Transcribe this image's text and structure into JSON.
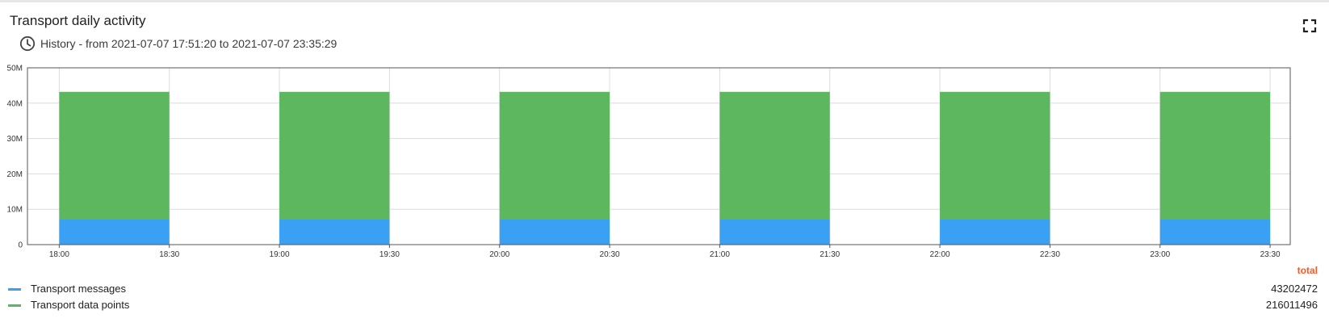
{
  "widget": {
    "title": "Transport daily activity",
    "history_label": "History - from 2021-07-07 17:51:20 to 2021-07-07 23:35:29"
  },
  "icons": {
    "history": "clock-icon",
    "fullscreen": "fullscreen-icon"
  },
  "colors": {
    "messages": "#3aa0f3",
    "data_points": "#5cb75f",
    "total_label": "#ff5722"
  },
  "chart_data": {
    "type": "bar",
    "stacked": true,
    "x_tick_labels": [
      "18:00",
      "18:30",
      "19:00",
      "19:30",
      "20:00",
      "20:30",
      "21:00",
      "21:30",
      "22:00",
      "22:30",
      "23:00",
      "23:30"
    ],
    "y_tick_labels": [
      "0",
      "10M",
      "20M",
      "30M",
      "40M",
      "50M"
    ],
    "ylim": [
      0,
      50000000
    ],
    "grid": true,
    "bars": [
      {
        "from": "18:00",
        "to": "18:30",
        "messages": 7200412,
        "data_points": 36001913
      },
      {
        "from": "19:00",
        "to": "19:30",
        "messages": 7200412,
        "data_points": 36001913
      },
      {
        "from": "20:00",
        "to": "20:30",
        "messages": 7200412,
        "data_points": 36001913
      },
      {
        "from": "21:00",
        "to": "21:30",
        "messages": 7200412,
        "data_points": 36001913
      },
      {
        "from": "22:00",
        "to": "22:30",
        "messages": 7200412,
        "data_points": 36001913
      },
      {
        "from": "23:00",
        "to": "23:30",
        "messages": 7200412,
        "data_points": 36001913
      }
    ],
    "series": [
      {
        "name": "Transport messages",
        "key": "messages"
      },
      {
        "name": "Transport data points",
        "key": "data_points"
      }
    ]
  },
  "legend": {
    "total_header": "total",
    "items": [
      {
        "label": "Transport messages",
        "total": "43202472"
      },
      {
        "label": "Transport data points",
        "total": "216011496"
      }
    ]
  }
}
